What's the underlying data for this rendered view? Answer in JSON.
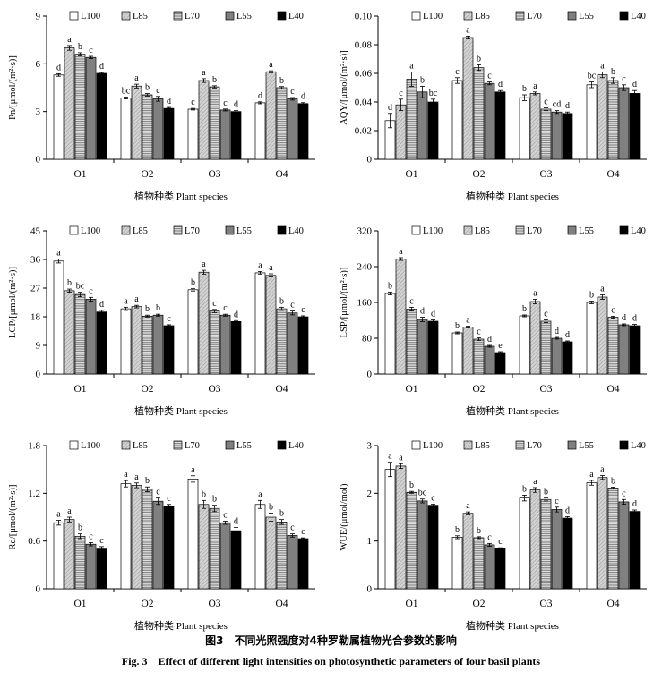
{
  "caption": {
    "zh": "图3　不同光照强度对4种罗勒属植物光合参数的影响",
    "en": "Fig. 3　Effect of different light intensities on photosynthetic parameters of four basil plants"
  },
  "legend": [
    "L100",
    "L85",
    "L70",
    "L55",
    "L40"
  ],
  "series_colors": [
    "#ffffff",
    "#c8c8c8",
    "#a9a9a9",
    "#7a7a7a",
    "#000000"
  ],
  "chart_data": [
    {
      "type": "bar",
      "ylabel": "Pn/[μmol/(m²·s)]",
      "xlabel": "植物种类 Plant species",
      "categories": [
        "O1",
        "O2",
        "O3",
        "O4"
      ],
      "ylim": [
        0,
        9
      ],
      "yticks": [
        "0",
        "3",
        "6",
        "9"
      ],
      "legend_labels": [
        "L100",
        "L85",
        "L70",
        "L55",
        "L40"
      ],
      "series": [
        {
          "name": "L100",
          "values": [
            5.3,
            3.85,
            3.15,
            3.55
          ],
          "errors": [
            0.08,
            0.06,
            0.05,
            0.06
          ],
          "letters": [
            "d",
            "bc",
            "c",
            "d"
          ]
        },
        {
          "name": "L85",
          "values": [
            7.0,
            4.6,
            4.95,
            5.5
          ],
          "errors": [
            0.15,
            0.12,
            0.12,
            0.06
          ],
          "letters": [
            "a",
            "a",
            "a",
            "a"
          ]
        },
        {
          "name": "L70",
          "values": [
            6.6,
            4.05,
            4.55,
            4.5
          ],
          "errors": [
            0.1,
            0.08,
            0.07,
            0.07
          ],
          "letters": [
            "b",
            "b",
            "b",
            "b"
          ]
        },
        {
          "name": "L55",
          "values": [
            6.4,
            3.8,
            3.1,
            3.8
          ],
          "errors": [
            0.07,
            0.15,
            0.06,
            0.08
          ],
          "letters": [
            "c",
            "c",
            "c",
            "c"
          ]
        },
        {
          "name": "L40",
          "values": [
            5.4,
            3.2,
            3.0,
            3.5
          ],
          "errors": [
            0.06,
            0.06,
            0.06,
            0.06
          ],
          "letters": [
            "d",
            "d",
            "d",
            "d"
          ]
        }
      ]
    },
    {
      "type": "bar",
      "ylabel": "AQY/[μmol/(m²·s)]",
      "xlabel": "植物种类 Plant species",
      "categories": [
        "O1",
        "O2",
        "O3",
        "O4"
      ],
      "ylim": [
        0,
        0.1
      ],
      "yticks": [
        "0",
        "0.02",
        "0.04",
        "0.06",
        "0.08",
        "0.10"
      ],
      "legend_labels": [
        "L100",
        "L85",
        "L70",
        "L55",
        "L40"
      ],
      "series": [
        {
          "name": "L100",
          "values": [
            0.027,
            0.055,
            0.043,
            0.052
          ],
          "errors": [
            0.005,
            0.002,
            0.002,
            0.002
          ],
          "letters": [
            "d",
            "c",
            "b",
            "bc"
          ]
        },
        {
          "name": "L85",
          "values": [
            0.038,
            0.085,
            0.046,
            0.059
          ],
          "errors": [
            0.004,
            0.001,
            0.001,
            0.002
          ],
          "letters": [
            "c",
            "a",
            "a",
            "a"
          ]
        },
        {
          "name": "L70",
          "values": [
            0.056,
            0.064,
            0.035,
            0.055
          ],
          "errors": [
            0.005,
            0.002,
            0.001,
            0.002
          ],
          "letters": [
            "a",
            "b",
            "c",
            "b"
          ]
        },
        {
          "name": "L55",
          "values": [
            0.047,
            0.053,
            0.033,
            0.05
          ],
          "errors": [
            0.004,
            0.001,
            0.001,
            0.002
          ],
          "letters": [
            "b",
            "c",
            "cd",
            "c"
          ]
        },
        {
          "name": "L40",
          "values": [
            0.04,
            0.047,
            0.032,
            0.046
          ],
          "errors": [
            0.002,
            0.001,
            0.001,
            0.002
          ],
          "letters": [
            "bc",
            "d",
            "d",
            "d"
          ]
        }
      ]
    },
    {
      "type": "bar",
      "ylabel": "LCP/[μmol/(m²·s)]",
      "xlabel": "植物种类 Plant species",
      "categories": [
        "O1",
        "O2",
        "O3",
        "O4"
      ],
      "ylim": [
        0,
        45
      ],
      "yticks": [
        "0",
        "9",
        "18",
        "27",
        "36",
        "45"
      ],
      "legend_labels": [
        "L100",
        "L85",
        "L70",
        "L55",
        "L40"
      ],
      "series": [
        {
          "name": "L100",
          "values": [
            35.5,
            20.5,
            26.5,
            31.8
          ],
          "errors": [
            0.6,
            0.5,
            0.4,
            0.4
          ],
          "letters": [
            "a",
            "a",
            "b",
            "a"
          ]
        },
        {
          "name": "L85",
          "values": [
            26.2,
            21.2,
            32.0,
            31.0
          ],
          "errors": [
            0.5,
            0.4,
            0.6,
            0.5
          ],
          "letters": [
            "b",
            "a",
            "a",
            "a"
          ]
        },
        {
          "name": "L70",
          "values": [
            25.0,
            18.2,
            19.8,
            20.5
          ],
          "errors": [
            0.7,
            0.3,
            0.5,
            0.5
          ],
          "letters": [
            "bc",
            "b",
            "c",
            "b"
          ]
        },
        {
          "name": "L55",
          "values": [
            23.5,
            18.5,
            18.5,
            19.2
          ],
          "errors": [
            0.6,
            0.3,
            0.3,
            0.6
          ],
          "letters": [
            "c",
            "b",
            "c",
            "c"
          ]
        },
        {
          "name": "L40",
          "values": [
            19.5,
            15.2,
            16.5,
            18.0
          ],
          "errors": [
            0.5,
            0.3,
            0.3,
            0.3
          ],
          "letters": [
            "d",
            "c",
            "d",
            "c"
          ]
        }
      ]
    },
    {
      "type": "bar",
      "ylabel": "LSP/[μmol/(m²·s)]",
      "xlabel": "植物种类 Plant species",
      "categories": [
        "O1",
        "O2",
        "O3",
        "O4"
      ],
      "ylim": [
        0,
        320
      ],
      "yticks": [
        "0",
        "80",
        "160",
        "240",
        "320"
      ],
      "legend_labels": [
        "L100",
        "L85",
        "L70",
        "L55",
        "L40"
      ],
      "series": [
        {
          "name": "L100",
          "values": [
            180,
            92,
            130,
            160
          ],
          "errors": [
            3,
            2,
            2,
            3
          ],
          "letters": [
            "b",
            "b",
            "b",
            "b"
          ]
        },
        {
          "name": "L85",
          "values": [
            257,
            105,
            162,
            172
          ],
          "errors": [
            3,
            2,
            5,
            5
          ],
          "letters": [
            "a",
            "a",
            "a",
            "a"
          ]
        },
        {
          "name": "L70",
          "values": [
            145,
            78,
            118,
            127
          ],
          "errors": [
            4,
            3,
            3,
            2
          ],
          "letters": [
            "c",
            "c",
            "c",
            "c"
          ]
        },
        {
          "name": "L55",
          "values": [
            122,
            62,
            80,
            110
          ],
          "errors": [
            5,
            2,
            2,
            2
          ],
          "letters": [
            "d",
            "d",
            "d",
            "d"
          ]
        },
        {
          "name": "L40",
          "values": [
            118,
            48,
            72,
            108
          ],
          "errors": [
            3,
            2,
            2,
            3
          ],
          "letters": [
            "d",
            "e",
            "d",
            "d"
          ]
        }
      ]
    },
    {
      "type": "bar",
      "ylabel": "Rd/[μmol/(m²·s)]",
      "xlabel": "植物种类 Plant species",
      "categories": [
        "O1",
        "O2",
        "O3",
        "O4"
      ],
      "ylim": [
        0,
        1.8
      ],
      "yticks": [
        "0",
        "0.6",
        "1.2",
        "1.8"
      ],
      "legend_labels": [
        "L100",
        "L85",
        "L70",
        "L55",
        "L40"
      ],
      "series": [
        {
          "name": "L100",
          "values": [
            0.83,
            1.32,
            1.38,
            1.06
          ],
          "errors": [
            0.03,
            0.04,
            0.04,
            0.05
          ],
          "letters": [
            "a",
            "a",
            "a",
            "a"
          ]
        },
        {
          "name": "L85",
          "values": [
            0.87,
            1.3,
            1.06,
            0.9
          ],
          "errors": [
            0.03,
            0.03,
            0.05,
            0.05
          ],
          "letters": [
            "a",
            "a",
            "b",
            "b"
          ]
        },
        {
          "name": "L70",
          "values": [
            0.66,
            1.25,
            1.01,
            0.84
          ],
          "errors": [
            0.03,
            0.03,
            0.04,
            0.03
          ],
          "letters": [
            "b",
            "b",
            "b",
            "b"
          ]
        },
        {
          "name": "L55",
          "values": [
            0.56,
            1.1,
            0.83,
            0.67
          ],
          "errors": [
            0.02,
            0.04,
            0.02,
            0.02
          ],
          "letters": [
            "c",
            "c",
            "c",
            "c"
          ]
        },
        {
          "name": "L40",
          "values": [
            0.5,
            1.04,
            0.73,
            0.63
          ],
          "errors": [
            0.03,
            0.02,
            0.04,
            0.01
          ],
          "letters": [
            "c",
            "c",
            "d",
            "c"
          ]
        }
      ]
    },
    {
      "type": "bar",
      "ylabel": "WUE/(μmol/mol)",
      "xlabel": "植物种类 Plant species",
      "categories": [
        "O1",
        "O2",
        "O3",
        "O4"
      ],
      "ylim": [
        0,
        3
      ],
      "yticks": [
        "0",
        "1",
        "2",
        "3"
      ],
      "legend_labels": [
        "L100",
        "L85",
        "L70",
        "L55",
        "L40"
      ],
      "series": [
        {
          "name": "L100",
          "values": [
            2.5,
            1.08,
            1.9,
            2.22
          ],
          "errors": [
            0.15,
            0.03,
            0.06,
            0.05
          ],
          "letters": [
            "a",
            "b",
            "b",
            "a"
          ]
        },
        {
          "name": "L85",
          "values": [
            2.57,
            1.58,
            2.07,
            2.33
          ],
          "errors": [
            0.05,
            0.03,
            0.05,
            0.04
          ],
          "letters": [
            "a",
            "a",
            "a",
            "a"
          ]
        },
        {
          "name": "L70",
          "values": [
            2.02,
            1.07,
            1.87,
            2.11
          ],
          "errors": [
            0.02,
            0.02,
            0.03,
            0.02
          ],
          "letters": [
            "b",
            "b",
            "b",
            "b"
          ]
        },
        {
          "name": "L55",
          "values": [
            1.84,
            0.92,
            1.66,
            1.82
          ],
          "errors": [
            0.04,
            0.03,
            0.05,
            0.05
          ],
          "letters": [
            "bc",
            "c",
            "c",
            "c"
          ]
        },
        {
          "name": "L40",
          "values": [
            1.75,
            0.84,
            1.48,
            1.62
          ],
          "errors": [
            0.02,
            0.02,
            0.03,
            0.03
          ],
          "letters": [
            "c",
            "c",
            "d",
            "d"
          ]
        }
      ]
    }
  ]
}
